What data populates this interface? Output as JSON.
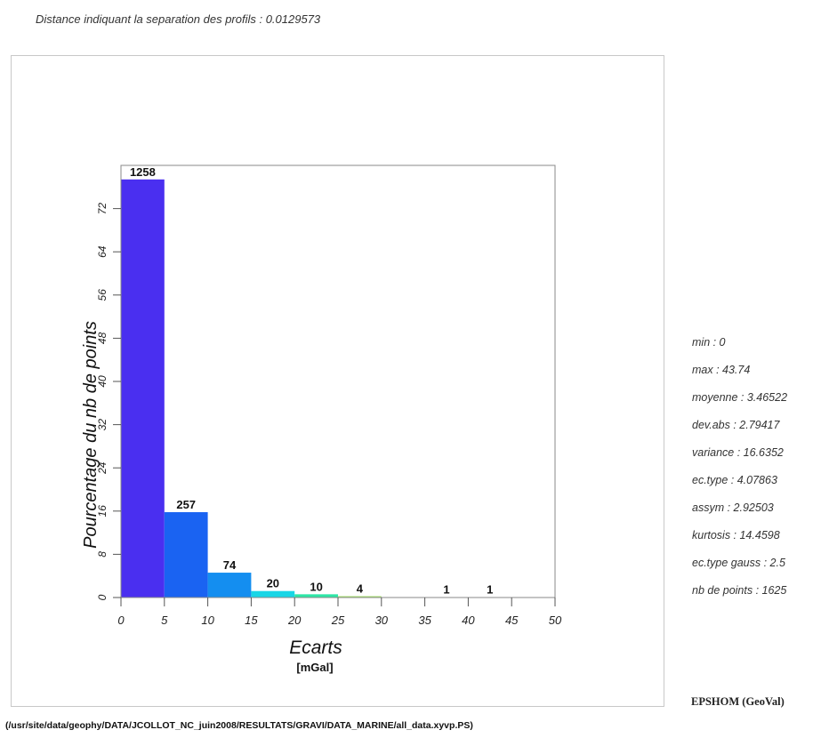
{
  "header": {
    "separation_text": "Distance indiquant la separation des profils : 0.0129573"
  },
  "chart_data": {
    "type": "bar",
    "bins": [
      [
        0,
        5
      ],
      [
        5,
        10
      ],
      [
        10,
        15
      ],
      [
        15,
        20
      ],
      [
        20,
        25
      ],
      [
        25,
        30
      ],
      [
        30,
        35
      ],
      [
        35,
        40
      ],
      [
        40,
        45
      ],
      [
        45,
        50
      ]
    ],
    "values": [
      77.4,
      15.8,
      4.6,
      1.2,
      0.6,
      0.25,
      0,
      0.06,
      0.06,
      0
    ],
    "counts": [
      "1258",
      "257",
      "74",
      "20",
      "10",
      "4",
      "",
      "1",
      "1",
      ""
    ],
    "colors": [
      "#4a2ff0",
      "#1a63f2",
      "#148ef0",
      "#18d6e6",
      "#2ee6a6",
      "#a6e070",
      "#ffffff",
      "#ffffff",
      "#ffffff",
      "#ffffff"
    ],
    "xlabel": "Ecarts",
    "xunit": "[mGal]",
    "ylabel": "Pourcentage du nb de points",
    "xticks": [
      "0",
      "5",
      "10",
      "15",
      "20",
      "25",
      "30",
      "35",
      "40",
      "45",
      "50"
    ],
    "yticks": [
      "0",
      "8",
      "16",
      "24",
      "32",
      "40",
      "48",
      "56",
      "64",
      "72"
    ],
    "xlim": [
      0,
      50
    ],
    "ylim": [
      0,
      80
    ],
    "grid": false
  },
  "stats": [
    "min : 0",
    "max : 43.74",
    "moyenne : 3.46522",
    "dev.abs : 2.79417",
    "variance : 16.6352",
    "ec.type : 4.07863",
    "assym : 2.92503",
    "kurtosis : 14.4598",
    "ec.type gauss  : 2.5",
    "nb de points : 1625"
  ],
  "brand": "EPSHOM (GeoVal)",
  "footer": "(/usr/site/data/geophy/DATA/JCOLLOT_NC_juin2008/RESULTATS/GRAVI/DATA_MARINE/all_data.xyvp.PS)"
}
